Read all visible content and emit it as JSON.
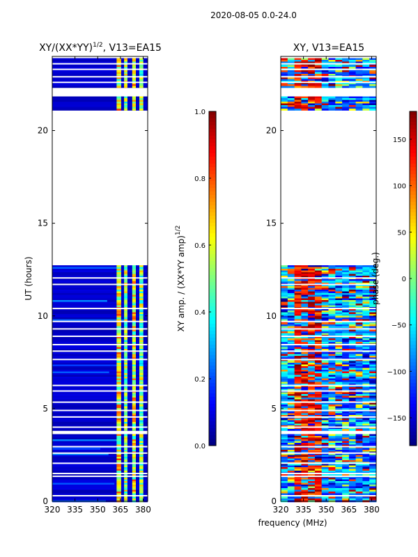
{
  "figure": {
    "suptitle": "2020-08-05 0.0-24.0",
    "shared_xlabel": "frequency (MHz)"
  },
  "colors": {
    "jet": [
      "#00007f",
      "#0000ff",
      "#007fff",
      "#00ffff",
      "#7fff7f",
      "#ffff00",
      "#ff7f00",
      "#ff0000",
      "#7f0000"
    ],
    "frame": "#000000"
  },
  "chart_data": [
    {
      "type": "heatmap",
      "title_main": "XY/(XX*YY)",
      "title_exp": "1/2",
      "title_tail": ", V13=EA15",
      "xlabel": "",
      "ylabel": "UT (hours)",
      "xlim": [
        320,
        383
      ],
      "ylim": [
        0,
        24
      ],
      "x_ticks": [
        320,
        335,
        350,
        365,
        380
      ],
      "y_ticks": [
        0,
        5,
        10,
        15,
        20
      ],
      "colorbar": {
        "label_main": "XY amp. / (XX*YY amp)",
        "label_exp": "1/2",
        "range": [
          0.0,
          1.0
        ],
        "ticks": [
          "0.0",
          "0.2",
          "0.4",
          "0.6",
          "0.8",
          "1.0"
        ],
        "tick_values": [
          0.0,
          0.2,
          0.4,
          0.6,
          0.8,
          1.0
        ]
      },
      "data_segments": [
        [
          0.0,
          3.7
        ],
        [
          3.85,
          12.8
        ],
        [
          21.1,
          21.85
        ],
        [
          22.35,
          23.95
        ]
      ],
      "gap_lines_ut": [
        0.3,
        1.35,
        1.5,
        2.05,
        2.6,
        2.95,
        4.0,
        4.55,
        4.9,
        5.35,
        5.95,
        6.25,
        7.65,
        8.1,
        8.45,
        8.9,
        9.3,
        9.7,
        10.4,
        11.7,
        12.05,
        22.6,
        22.9,
        23.3,
        23.6
      ],
      "channel_columns": [
        {
          "center": 364.0,
          "width": 3.0,
          "level": 0.72
        },
        {
          "center": 368.5,
          "width": 2.2,
          "level": 0.62
        },
        {
          "center": 374.0,
          "width": 2.4,
          "level": 0.7
        },
        {
          "center": 378.8,
          "width": 2.6,
          "level": 0.6
        }
      ],
      "baseline_level": 0.05
    },
    {
      "type": "heatmap",
      "title_main": "XY, V13=EA15",
      "xlabel": "",
      "ylabel": "",
      "xlim": [
        320,
        383
      ],
      "ylim": [
        0,
        24
      ],
      "x_ticks": [
        320,
        335,
        350,
        365,
        380
      ],
      "y_ticks": [
        0,
        5,
        10,
        15,
        20
      ],
      "colorbar": {
        "label_main": "phase (deg.)",
        "range": [
          -180,
          180
        ],
        "ticks": [
          "150",
          "100",
          "50",
          "0",
          "−50",
          "−100",
          "−150"
        ],
        "tick_values": [
          150,
          100,
          50,
          0,
          -50,
          -100,
          -150
        ]
      },
      "data_segments": [
        [
          0.0,
          3.7
        ],
        [
          3.85,
          12.8
        ],
        [
          21.1,
          21.85
        ],
        [
          22.35,
          23.95
        ]
      ],
      "gap_lines_ut": [
        0.3,
        1.35,
        1.5,
        2.05,
        2.6,
        2.95,
        4.0,
        4.55,
        4.9,
        5.35,
        5.95,
        6.25,
        7.65,
        8.1,
        8.45,
        8.9,
        9.3,
        9.7,
        10.4,
        11.7,
        12.05,
        22.6,
        22.9,
        23.3,
        23.6
      ],
      "phase_hotspot_mhz": [
        330,
        345
      ]
    }
  ]
}
